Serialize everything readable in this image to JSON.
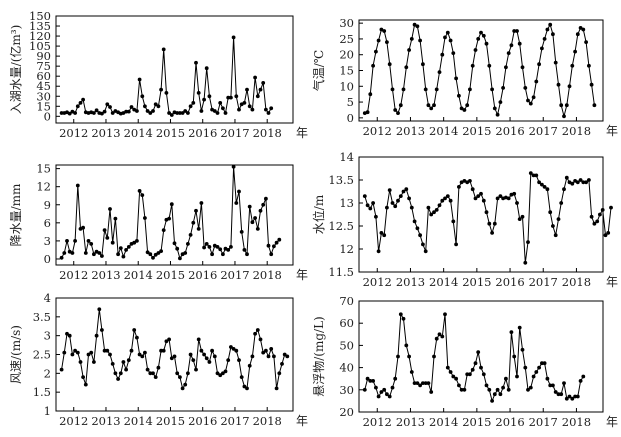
{
  "chart_data": [
    {
      "type": "line",
      "ylabel": "入湖水量/(亿m³)",
      "xlabel": "年",
      "ylim": [
        -10,
        150
      ],
      "yticks": [
        0,
        15,
        30,
        45,
        60,
        75,
        90,
        105,
        120,
        135,
        150
      ],
      "xticks": [
        2012,
        2013,
        2014,
        2015,
        2016,
        2017,
        2018
      ],
      "xlim": [
        2011.45,
        2018.8
      ],
      "series": [
        {
          "x_start": 2011.625,
          "x_step": 0.08333,
          "values": [
            5,
            5,
            6,
            4,
            7,
            5,
            15,
            20,
            25,
            6,
            5,
            6,
            5,
            9,
            5,
            4,
            7,
            18,
            14,
            5,
            8,
            6,
            4,
            5,
            7,
            7,
            14,
            10,
            8,
            55,
            30,
            15,
            8,
            5,
            8,
            18,
            15,
            40,
            100,
            35,
            5,
            2,
            6,
            5,
            5,
            5,
            8,
            5,
            15,
            20,
            80,
            35,
            8,
            25,
            72,
            30,
            10,
            8,
            5,
            20,
            12,
            5,
            28,
            28,
            118,
            30,
            10,
            18,
            20,
            40,
            15,
            10,
            58,
            30,
            40,
            50,
            10,
            5,
            12
          ],
          "color": "#000000"
        }
      ]
    },
    {
      "type": "line",
      "ylabel": "气温/℃",
      "xlabel": "年",
      "ylim": [
        -1,
        31
      ],
      "yticks": [
        0,
        5,
        10,
        15,
        20,
        25,
        30
      ],
      "xticks": [
        2012,
        2013,
        2014,
        2015,
        2016,
        2017,
        2018
      ],
      "xlim": [
        2011.45,
        2018.8
      ],
      "series": [
        {
          "x_start": 2011.625,
          "x_step": 0.08333,
          "values": [
            1.5,
            1.8,
            7.5,
            16.5,
            21,
            24.5,
            28,
            27.5,
            24,
            17,
            9,
            2.5,
            1.5,
            4,
            9,
            16,
            21.5,
            25,
            29.5,
            29,
            24.5,
            17,
            9,
            4,
            3,
            4,
            9,
            14.5,
            20,
            25.5,
            27,
            24.5,
            20.5,
            12.5,
            7,
            3,
            2.5,
            4,
            9,
            16.5,
            21.5,
            25,
            27,
            26,
            23.5,
            16.5,
            9,
            3,
            1,
            5,
            9.5,
            16,
            20.5,
            23,
            27.5,
            27.5,
            23.5,
            16,
            9.5,
            5.5,
            4.5,
            6.5,
            11.5,
            17,
            22,
            25,
            28,
            29.5,
            26.5,
            17.5,
            10.5,
            4,
            0.5,
            4,
            10,
            16.5,
            21,
            26.5,
            28.5,
            28,
            24,
            16.5,
            10.5,
            4
          ],
          "color": "#000000"
        }
      ]
    },
    {
      "type": "line",
      "ylabel": "降水量/mm",
      "xlabel": "年",
      "ylim": [
        -1,
        15.6
      ],
      "yticks": [
        0,
        3,
        6,
        9,
        12,
        15
      ],
      "xticks": [
        2012,
        2013,
        2014,
        2015,
        2016,
        2017,
        2018
      ],
      "xlim": [
        2011.45,
        2018.8
      ],
      "series": [
        {
          "x_start": 2011.625,
          "x_step": 0.08333,
          "values": [
            0.2,
            1,
            3,
            1.2,
            1,
            3,
            12.2,
            5,
            5.2,
            1,
            3,
            2.5,
            0.8,
            1.2,
            1,
            0.5,
            4.8,
            3.5,
            8.3,
            2.7,
            6.7,
            0.8,
            1.8,
            0.4,
            1.5,
            2,
            2.5,
            2.7,
            3,
            11.3,
            10.6,
            6.8,
            1.1,
            0.8,
            0.2,
            0.7,
            1,
            1.3,
            4.8,
            6.5,
            6.7,
            9.1,
            2.6,
            1.7,
            0.1,
            0.8,
            1,
            2.5,
            4,
            6,
            8,
            5,
            9.3,
            1.9,
            2.5,
            2,
            0.8,
            2.2,
            2,
            1.6,
            0.8,
            1.7,
            1.5,
            2,
            15.3,
            9.3,
            11.2,
            4.5,
            1.5,
            0.8,
            8.7,
            6.1,
            6.8,
            5,
            8,
            9,
            10,
            2.2,
            0.8,
            2.1,
            2.7,
            3.2
          ],
          "color": "#000000"
        }
      ]
    },
    {
      "type": "line",
      "ylabel": "水位/m",
      "xlabel": "年",
      "ylim": [
        11.5,
        14.0
      ],
      "yticks": [
        11.5,
        12.0,
        12.5,
        13.0,
        13.5,
        14.0
      ],
      "xticks": [
        2012,
        2013,
        2014,
        2015,
        2016,
        2017,
        2018
      ],
      "xlim": [
        2011.45,
        2018.8
      ],
      "series": [
        {
          "x_start": 2011.625,
          "x_step": 0.08333,
          "values": [
            13.15,
            12.95,
            12.88,
            13.0,
            12.7,
            11.95,
            12.35,
            12.3,
            12.9,
            13.28,
            13.0,
            12.93,
            13.05,
            13.15,
            13.25,
            13.3,
            13.1,
            12.9,
            12.6,
            12.45,
            12.3,
            12.1,
            11.95,
            12.9,
            12.75,
            12.8,
            12.85,
            12.95,
            13.05,
            13.1,
            13.15,
            13.05,
            12.6,
            12.1,
            13.35,
            13.45,
            13.48,
            13.45,
            13.48,
            13.3,
            13.1,
            13.15,
            13.2,
            13.05,
            12.8,
            12.55,
            12.35,
            12.55,
            13.1,
            13.15,
            13.1,
            13.12,
            13.1,
            13.18,
            13.2,
            13.0,
            12.65,
            12.7,
            11.7,
            12.15,
            13.65,
            13.6,
            13.6,
            13.45,
            13.4,
            13.35,
            13.3,
            12.8,
            12.5,
            12.3,
            12.65,
            13.0,
            13.3,
            13.55,
            13.45,
            13.42,
            13.48,
            13.45,
            13.5,
            13.45,
            13.45,
            13.5,
            12.7,
            12.55,
            12.6,
            12.75,
            12.85,
            12.3,
            12.35,
            12.9
          ],
          "color": "#000000"
        }
      ]
    },
    {
      "type": "line",
      "ylabel": "风速/(m/s)",
      "xlabel": "年",
      "ylim": [
        1.0,
        4.0
      ],
      "yticks": [
        1.0,
        1.5,
        2.0,
        2.5,
        3.0,
        3.5,
        4.0
      ],
      "xticks": [
        2012,
        2013,
        2014,
        2015,
        2016,
        2017,
        2018
      ],
      "xlim": [
        2011.45,
        2018.8
      ],
      "series": [
        {
          "x_start": 2011.625,
          "x_step": 0.08333,
          "values": [
            2.1,
            2.55,
            3.05,
            3.0,
            2.5,
            2.6,
            2.55,
            2.3,
            1.9,
            1.7,
            2.5,
            2.55,
            2.3,
            3.0,
            3.7,
            3.15,
            2.6,
            2.6,
            2.5,
            2.25,
            2.0,
            1.85,
            2.0,
            2.3,
            2.1,
            2.35,
            2.6,
            3.15,
            2.95,
            2.5,
            2.45,
            2.55,
            2.1,
            2.0,
            2.0,
            1.9,
            2.15,
            2.6,
            2.6,
            2.85,
            2.9,
            2.4,
            2.45,
            2.0,
            1.9,
            1.6,
            1.7,
            2.0,
            2.5,
            2.35,
            2.1,
            2.9,
            2.6,
            2.5,
            2.4,
            2.3,
            2.6,
            2.45,
            2.0,
            1.95,
            2.0,
            2.05,
            2.35,
            2.7,
            2.65,
            2.6,
            2.35,
            1.9,
            1.65,
            1.6,
            2.2,
            2.45,
            3.05,
            3.15,
            2.9,
            2.55,
            2.6,
            2.45,
            2.65,
            2.45,
            1.6,
            2.0,
            2.25,
            2.5,
            2.45
          ],
          "color": "#000000"
        }
      ]
    },
    {
      "type": "line",
      "ylabel": "悬浮物/(mg/L)",
      "xlabel": "年",
      "ylim": [
        20,
        70
      ],
      "yticks": [
        20,
        30,
        40,
        50,
        60,
        70
      ],
      "xticks": [
        2012,
        2013,
        2014,
        2015,
        2016,
        2017,
        2018
      ],
      "xlim": [
        2011.45,
        2018.8
      ],
      "series": [
        {
          "x_start": 2011.625,
          "x_step": 0.08333,
          "values": [
            30,
            35,
            34,
            34,
            31,
            27,
            29,
            30,
            28,
            27,
            31,
            35,
            45,
            64,
            62,
            50,
            45,
            38,
            33,
            33,
            32,
            33,
            33,
            33,
            29,
            45,
            53,
            55,
            54,
            64,
            40,
            38,
            36,
            35,
            32,
            30,
            30,
            37,
            37,
            39,
            42,
            47,
            40,
            37,
            32,
            30,
            25,
            28,
            30,
            28,
            31,
            35,
            30,
            56,
            45,
            36,
            58,
            48,
            40,
            30,
            31,
            36,
            38,
            40,
            42,
            42,
            35,
            32,
            32,
            29,
            28,
            28,
            33,
            26,
            27,
            26,
            27,
            27,
            34,
            36
          ],
          "color": "#000000"
        }
      ]
    }
  ]
}
